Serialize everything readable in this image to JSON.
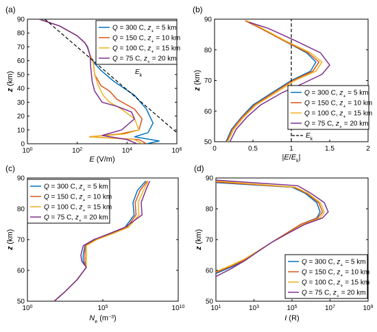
{
  "colors": {
    "blue": "#0072BD",
    "orange": "#D95319",
    "yellow": "#EDB120",
    "purple": "#7E2F8E",
    "black": "#000000"
  },
  "legend_entries": [
    "Q = 300 C, z+ = 5 km",
    "Q = 150 C, z+ = 10 km",
    "Q = 100 C, z+ = 15 km",
    "Q = 75 C, z+ = 20 km"
  ],
  "chart_data": [
    {
      "panel": "(a)",
      "type": "line",
      "xlabel": "E (V/m)",
      "ylabel": "z (km)",
      "xscale": "log",
      "xlim": [
        1,
        1000000
      ],
      "ylim": [
        0,
        90
      ],
      "xticks": [
        "10^0",
        "10^2",
        "10^4",
        "10^6"
      ],
      "yticks": [
        0,
        10,
        20,
        30,
        40,
        50,
        60,
        70,
        80,
        90
      ],
      "legend_position": "top-right",
      "annotation": "Ek",
      "series": [
        {
          "name": "Q = 300 C, z+ = 5 km",
          "color": "blue",
          "x": [
            3,
            20,
            100,
            200,
            250,
            300,
            350,
            500,
            900,
            3000,
            20000,
            60000,
            110000,
            70000,
            20000,
            200000,
            60000
          ],
          "y": [
            90,
            85,
            78,
            73,
            70,
            66,
            63,
            58,
            53,
            45,
            35,
            25,
            15,
            8,
            5,
            2,
            0
          ]
        },
        {
          "name": "Q = 150 C, z+ = 10 km",
          "color": "orange",
          "x": [
            3,
            20,
            100,
            200,
            260,
            300,
            350,
            450,
            500,
            900,
            2000,
            4000,
            20000,
            40000,
            30000,
            5000,
            300,
            30000,
            60000
          ],
          "y": [
            90,
            85,
            78,
            73,
            70,
            66,
            63,
            58,
            50,
            42,
            38,
            32,
            25,
            18,
            10,
            7,
            5,
            3,
            0
          ]
        },
        {
          "name": "Q = 100 C, z+ = 15 km",
          "color": "yellow",
          "x": [
            3,
            20,
            100,
            200,
            260,
            300,
            350,
            450,
            500,
            700,
            1100,
            2000,
            6000,
            20000,
            30000,
            8000,
            300,
            20000,
            40000
          ],
          "y": [
            90,
            85,
            78,
            73,
            70,
            66,
            63,
            58,
            50,
            42,
            35,
            30,
            25,
            18,
            10,
            7,
            5,
            3,
            0
          ]
        },
        {
          "name": "Q = 75 C, z+ = 20 km",
          "color": "purple",
          "x": [
            3,
            20,
            100,
            200,
            260,
            300,
            330,
            350,
            400,
            500,
            1000,
            4000,
            15000,
            20000,
            6000,
            1000,
            10000,
            25000
          ],
          "y": [
            90,
            85,
            78,
            73,
            70,
            66,
            63,
            55,
            45,
            38,
            30,
            27,
            23,
            18,
            10,
            6,
            3,
            0
          ]
        },
        {
          "name": "Ek",
          "color": "black",
          "dashed": true,
          "x": [
            5,
            1000000
          ],
          "y": [
            90,
            8
          ]
        }
      ]
    },
    {
      "panel": "(b)",
      "type": "line",
      "xlabel": "|E/Ek|",
      "ylabel": "z (km)",
      "xlim": [
        0,
        2
      ],
      "ylim": [
        50,
        90
      ],
      "xticks": [
        0,
        0.5,
        1,
        1.5,
        2
      ],
      "yticks": [
        50,
        60,
        70,
        80,
        90
      ],
      "legend_position": "bottom-right",
      "annotation": "Ek",
      "series": [
        {
          "name": "Q = 300 C, z+ = 5 km",
          "color": "blue",
          "x": [
            0.4,
            0.6,
            0.9,
            1.2,
            1.32,
            1.25,
            1.0,
            0.75,
            0.5,
            0.35,
            0.22,
            0.15
          ],
          "y": [
            89.5,
            87,
            83,
            79,
            76,
            73,
            70,
            66,
            62,
            58,
            54,
            50
          ]
        },
        {
          "name": "Q = 150 C, z+ = 10 km",
          "color": "orange",
          "x": [
            0.4,
            0.6,
            0.9,
            1.22,
            1.36,
            1.28,
            1.02,
            0.77,
            0.52,
            0.36,
            0.23,
            0.16
          ],
          "y": [
            89.5,
            87,
            83,
            79,
            76,
            73,
            70,
            66,
            62,
            58,
            54,
            50
          ]
        },
        {
          "name": "Q = 100 C, z+ = 15 km",
          "color": "yellow",
          "x": [
            0.42,
            0.62,
            0.92,
            1.25,
            1.4,
            1.32,
            1.05,
            0.8,
            0.54,
            0.38,
            0.25,
            0.17
          ],
          "y": [
            89.5,
            87,
            83,
            79,
            76,
            73,
            70,
            66,
            62,
            58,
            54,
            50
          ]
        },
        {
          "name": "Q = 75 C, z+ = 20 km",
          "color": "purple",
          "x": [
            0.45,
            0.7,
            1.05,
            1.38,
            1.5,
            1.4,
            1.15,
            0.88,
            0.6,
            0.42,
            0.28,
            0.2
          ],
          "y": [
            89,
            87,
            83,
            79,
            75,
            72,
            69,
            66,
            62,
            58,
            54,
            50
          ]
        },
        {
          "name": "Ek",
          "color": "black",
          "dashed": true,
          "x": [
            1,
            1
          ],
          "y": [
            50,
            90
          ]
        }
      ]
    },
    {
      "panel": "(c)",
      "type": "line",
      "xlabel": "Ne (m^-3)",
      "ylabel": "z (km)",
      "xscale": "log",
      "xlim": [
        1,
        10000000000
      ],
      "ylim": [
        50,
        90
      ],
      "xticks": [
        "10^0",
        "10^5",
        "10^10"
      ],
      "yticks": [
        50,
        60,
        70,
        80,
        90
      ],
      "legend_position": "top-left",
      "series": [
        {
          "name": "Q = 300 C, z+ = 5 km",
          "color": "blue",
          "x": [
            60,
            300,
            2000,
            8000,
            5000,
            5000,
            6500,
            30000,
            300000,
            3000000,
            12000000,
            10000000,
            20000000,
            70000000
          ],
          "y": [
            50,
            53,
            57,
            61,
            63,
            65,
            68,
            70,
            72,
            74,
            78,
            82,
            86,
            89
          ]
        },
        {
          "name": "Q = 150 C, z+ = 10 km",
          "color": "orange",
          "x": [
            60,
            300,
            2000,
            8000,
            6500,
            6500,
            7000,
            35000,
            400000,
            4000000,
            16000000,
            14000000,
            30000000,
            90000000
          ],
          "y": [
            50,
            53,
            57,
            61,
            63,
            65,
            68,
            70,
            72,
            74,
            78,
            82,
            86,
            89
          ]
        },
        {
          "name": "Q = 100 C, z+ = 15 km",
          "color": "yellow",
          "x": [
            60,
            300,
            2000,
            8000,
            8000,
            8500,
            8000,
            40000,
            500000,
            5000000,
            25000000,
            22000000,
            50000000,
            100000000
          ],
          "y": [
            50,
            53,
            57,
            61,
            63,
            65,
            68,
            70,
            72,
            74,
            78,
            82,
            86,
            89
          ]
        },
        {
          "name": "Q = 75 C, z+ = 20 km",
          "color": "purple",
          "x": [
            60,
            300,
            2000,
            8000,
            4000,
            3500,
            5000,
            25000,
            300000,
            3000000,
            40000000,
            35000000,
            70000000,
            130000000
          ],
          "y": [
            50,
            53,
            57,
            61,
            63,
            65,
            68,
            70,
            72,
            74,
            78,
            82,
            86,
            89
          ]
        }
      ]
    },
    {
      "panel": "(d)",
      "type": "line",
      "xlabel": "I (R)",
      "ylabel": "z (km)",
      "xscale": "log",
      "xlim": [
        10,
        1000000000
      ],
      "ylim": [
        50,
        90
      ],
      "xticks": [
        "10^1",
        "10^3",
        "10^5",
        "10^7",
        "10^9"
      ],
      "yticks": [
        50,
        60,
        70,
        80,
        90
      ],
      "legend_position": "bottom-right",
      "series": [
        {
          "name": "Q = 300 C, z+ = 5 km",
          "color": "blue",
          "x": [
            10,
            60,
            300,
            1500,
            8000,
            50000,
            300000,
            2000000,
            3000000,
            2000000,
            500000,
            100000,
            10
          ],
          "y": [
            59,
            61,
            63,
            66,
            69,
            72,
            75,
            77,
            79,
            82,
            85,
            87,
            88.5
          ]
        },
        {
          "name": "Q = 150 C, z+ = 10 km",
          "color": "orange",
          "x": [
            10,
            60,
            300,
            1500,
            8000,
            50000,
            300000,
            2200000,
            4000000,
            2500000,
            600000,
            120000,
            10
          ],
          "y": [
            59.3,
            61.3,
            63.3,
            66,
            69,
            72,
            75,
            77,
            79,
            82,
            85,
            87,
            88.7
          ]
        },
        {
          "name": "Q = 100 C, z+ = 15 km",
          "color": "yellow",
          "x": [
            10,
            60,
            300,
            1500,
            8000,
            60000,
            400000,
            3000000,
            5000000,
            3000000,
            700000,
            150000,
            10
          ],
          "y": [
            59.6,
            61.6,
            63.6,
            66.2,
            69,
            72,
            75,
            77,
            79,
            82,
            85,
            87,
            89
          ]
        },
        {
          "name": "Q = 75 C, z+ = 20 km",
          "color": "purple",
          "x": [
            10,
            60,
            300,
            1500,
            8000,
            60000,
            500000,
            4000000,
            8000000,
            5000000,
            1000000,
            200000,
            10
          ],
          "y": [
            58,
            60.5,
            63,
            66,
            69,
            72,
            75,
            77,
            79,
            82,
            85,
            87.5,
            89.3
          ]
        }
      ]
    }
  ]
}
